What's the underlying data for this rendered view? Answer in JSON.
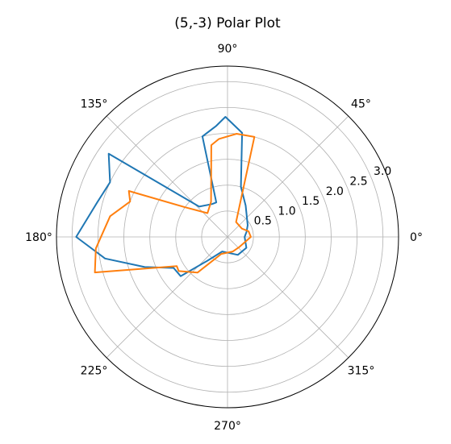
{
  "chart_data": {
    "type": "line",
    "projection": "polar",
    "title": "(5,-3) Polar Plot",
    "angle_unit": "degrees",
    "angle_ticks": [
      0,
      45,
      90,
      135,
      180,
      225,
      270,
      315
    ],
    "angle_tick_labels": [
      "0°",
      "45°",
      "90°",
      "135°",
      "180°",
      "225°",
      "270°",
      "315°"
    ],
    "radial_ticks": [
      0.5,
      1.0,
      1.5,
      2.0,
      2.5,
      3.0
    ],
    "radial_tick_labels": [
      "0.5",
      "1.0",
      "1.5",
      "2.0",
      "2.5",
      "3.0"
    ],
    "radial_label_angle": 22.5,
    "rlim": [
      0,
      3.3
    ],
    "grid": true,
    "series": [
      {
        "color": "#1f77b4",
        "points": [
          {
            "theta": 0,
            "r": 0.33
          },
          {
            "theta": 15,
            "r": 0.38
          },
          {
            "theta": 30,
            "r": 0.45
          },
          {
            "theta": 60,
            "r": 0.7
          },
          {
            "theta": 75,
            "r": 1.0
          },
          {
            "theta": 82,
            "r": 2.03
          },
          {
            "theta": 91,
            "r": 2.32
          },
          {
            "theta": 96,
            "r": 2.15
          },
          {
            "theta": 104,
            "r": 2.0
          },
          {
            "theta": 108,
            "r": 0.7
          },
          {
            "theta": 115,
            "r": 0.7
          },
          {
            "theta": 133,
            "r": 0.8
          },
          {
            "theta": 145,
            "r": 2.8
          },
          {
            "theta": 155,
            "r": 2.5
          },
          {
            "theta": 165,
            "r": 2.6
          },
          {
            "theta": 180,
            "r": 2.92
          },
          {
            "theta": 190,
            "r": 2.4
          },
          {
            "theta": 200,
            "r": 1.7
          },
          {
            "theta": 210,
            "r": 1.2
          },
          {
            "theta": 220,
            "r": 1.18
          },
          {
            "theta": 230,
            "r": 0.6
          },
          {
            "theta": 250,
            "r": 0.3
          },
          {
            "theta": 300,
            "r": 0.4
          },
          {
            "theta": 330,
            "r": 0.42
          },
          {
            "theta": 360,
            "r": 0.33
          }
        ]
      },
      {
        "color": "#ff7f0e",
        "points": [
          {
            "theta": 0,
            "r": 0.45
          },
          {
            "theta": 15,
            "r": 0.42
          },
          {
            "theta": 30,
            "r": 0.32
          },
          {
            "theta": 60,
            "r": 0.33
          },
          {
            "theta": 75,
            "r": 2.0
          },
          {
            "theta": 85,
            "r": 2.0
          },
          {
            "theta": 95,
            "r": 1.9
          },
          {
            "theta": 100,
            "r": 1.8
          },
          {
            "theta": 115,
            "r": 0.75
          },
          {
            "theta": 130,
            "r": 0.6
          },
          {
            "theta": 145,
            "r": 1.0
          },
          {
            "theta": 155,
            "r": 2.1
          },
          {
            "theta": 160,
            "r": 2.0
          },
          {
            "theta": 170,
            "r": 2.3
          },
          {
            "theta": 185,
            "r": 2.55
          },
          {
            "theta": 195,
            "r": 2.65
          },
          {
            "theta": 210,
            "r": 1.13
          },
          {
            "theta": 215,
            "r": 1.15
          },
          {
            "theta": 230,
            "r": 0.9
          },
          {
            "theta": 250,
            "r": 0.35
          },
          {
            "theta": 290,
            "r": 0.3
          },
          {
            "theta": 320,
            "r": 0.3
          },
          {
            "theta": 360,
            "r": 0.45
          }
        ]
      }
    ]
  }
}
